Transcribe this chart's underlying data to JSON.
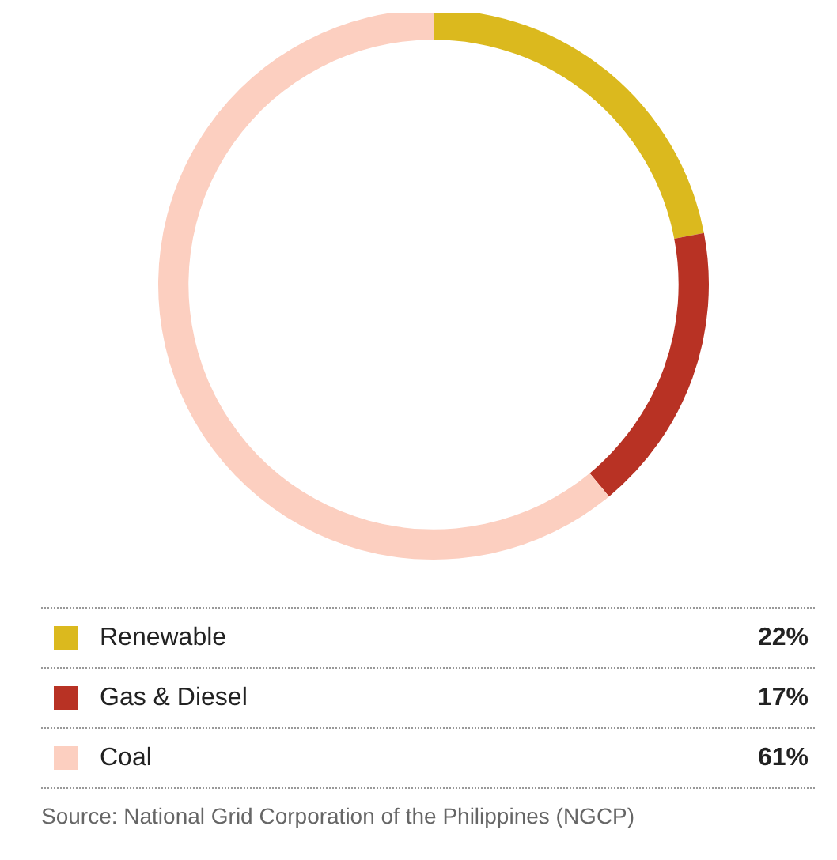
{
  "chart_data": {
    "type": "donut",
    "categories": [
      "Renewable",
      "Gas & Diesel",
      "Coal"
    ],
    "values": [
      22,
      17,
      61
    ],
    "colors": [
      "#dbb91e",
      "#b83224",
      "#fccfc0"
    ],
    "value_labels": [
      "22%",
      "17%",
      "61%"
    ],
    "legend": "bottom",
    "annotations": [
      "Source: National Grid Corporation of the Philippines (NGCP)"
    ]
  }
}
